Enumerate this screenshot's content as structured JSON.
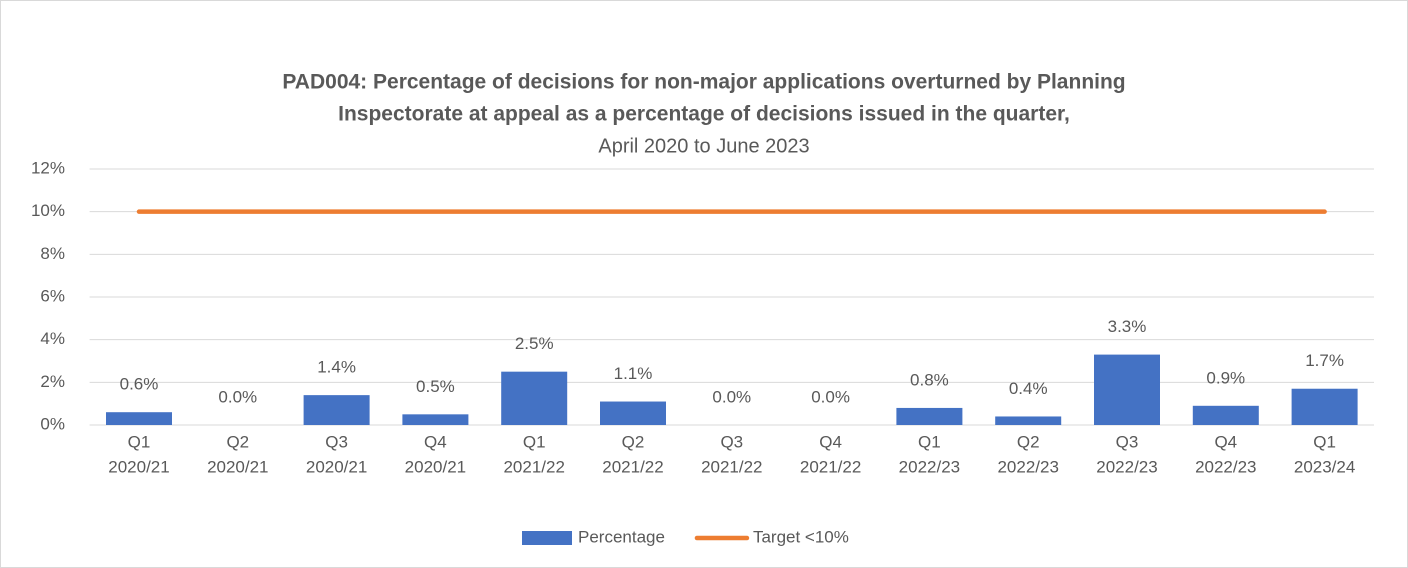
{
  "chart_data": {
    "type": "bar",
    "title": [
      "PAD004: Percentage of decisions for non-major applications overturned by Planning",
      "Inspectorate at appeal as a percentage of decisions issued in the quarter,"
    ],
    "subtitle": "April 2020 to June 2023",
    "categories": [
      [
        "Q1",
        "2020/21"
      ],
      [
        "Q2",
        "2020/21"
      ],
      [
        "Q3",
        "2020/21"
      ],
      [
        "Q4",
        "2020/21"
      ],
      [
        "Q1",
        "2021/22"
      ],
      [
        "Q2",
        "2021/22"
      ],
      [
        "Q3",
        "2021/22"
      ],
      [
        "Q4",
        "2021/22"
      ],
      [
        "Q1",
        "2022/23"
      ],
      [
        "Q2",
        "2022/23"
      ],
      [
        "Q3",
        "2022/23"
      ],
      [
        "Q4",
        "2022/23"
      ],
      [
        "Q1",
        "2023/24"
      ]
    ],
    "series": [
      {
        "name": "Percentage",
        "type": "bar",
        "color": "#4472c4",
        "values": [
          0.6,
          0,
          1.4,
          0.5,
          2.5,
          1.1,
          0,
          0,
          0.8,
          0.4,
          3.3,
          0.9,
          1.7
        ],
        "value_labels": [
          "0.6%",
          "0.0%",
          "1.4%",
          "0.5%",
          "2.5%",
          "1.1%",
          "0.0%",
          "0.0%",
          "0.8%",
          "0.4%",
          "3.3%",
          "0.9%",
          "1.7%"
        ]
      },
      {
        "name": "Target <10%",
        "type": "line",
        "color": "#ed7d31",
        "values": [
          10,
          10,
          10,
          10,
          10,
          10,
          10,
          10,
          10,
          10,
          10,
          10,
          10
        ]
      }
    ],
    "ylim": [
      0,
      12
    ],
    "yticks": [
      {
        "value": 0,
        "label": "0%"
      },
      {
        "value": 2,
        "label": "2%"
      },
      {
        "value": 4,
        "label": "4%"
      },
      {
        "value": 6,
        "label": "6%"
      },
      {
        "value": 8,
        "label": "8%"
      },
      {
        "value": 10,
        "label": "10%"
      },
      {
        "value": 12,
        "label": "12%"
      }
    ],
    "grid": true,
    "legend": "bottom"
  }
}
